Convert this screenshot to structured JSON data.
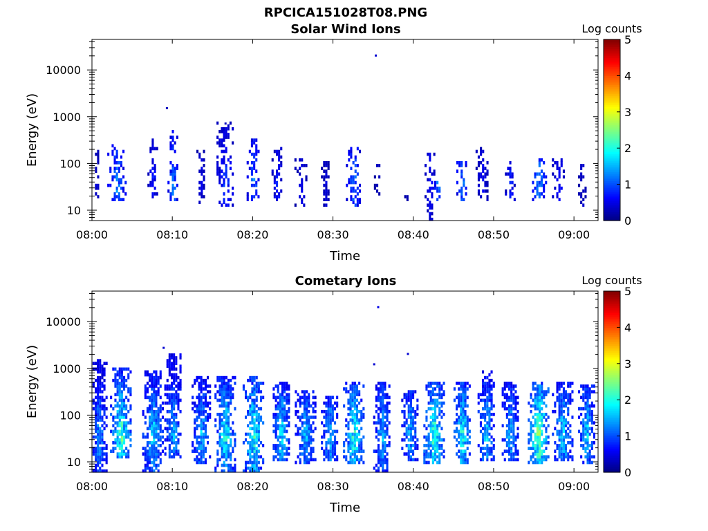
{
  "figure": {
    "title": "RPCICA151028T08.PNG",
    "colorbar": {
      "label": "Log counts",
      "min": 0,
      "max": 5,
      "ticks": [
        "0",
        "1",
        "2",
        "3",
        "4",
        "5"
      ]
    }
  },
  "chart_data": [
    {
      "type": "heatmap",
      "title": "Solar Wind Ions",
      "xlabel": "Time",
      "ylabel": "Energy (eV)",
      "x_ticks": [
        "08:00",
        "08:10",
        "08:20",
        "08:30",
        "08:40",
        "08:50",
        "09:00"
      ],
      "y_ticks": [
        "10",
        "100",
        "1000",
        "10000"
      ],
      "y_scale": "log",
      "ylim": [
        6,
        45000
      ],
      "xlim_minutes": [
        0,
        63
      ],
      "value_label": "Log counts",
      "value_range": [
        0,
        5
      ],
      "bursts": [
        {
          "t": 0.5,
          "w": 0.8,
          "lo": 15,
          "hi": 180,
          "peak": 0.6
        },
        {
          "t": 3.0,
          "w": 2.2,
          "lo": 15,
          "hi": 230,
          "peak": 1.6
        },
        {
          "t": 7.5,
          "w": 1.2,
          "lo": 15,
          "hi": 330,
          "peak": 1.0
        },
        {
          "t": 10.0,
          "w": 1.2,
          "lo": 15,
          "hi": 500,
          "peak": 1.6
        },
        {
          "t": 13.5,
          "w": 1.0,
          "lo": 12,
          "hi": 250,
          "peak": 0.7
        },
        {
          "t": 16.5,
          "w": 2.0,
          "lo": 12,
          "hi": 700,
          "peak": 1.2
        },
        {
          "t": 20.0,
          "w": 1.5,
          "lo": 15,
          "hi": 300,
          "peak": 1.5
        },
        {
          "t": 23.0,
          "w": 1.3,
          "lo": 15,
          "hi": 200,
          "peak": 1.0
        },
        {
          "t": 26.0,
          "w": 1.6,
          "lo": 12,
          "hi": 120,
          "peak": 0.7
        },
        {
          "t": 29.0,
          "w": 1.0,
          "lo": 12,
          "hi": 100,
          "peak": 0.6
        },
        {
          "t": 32.5,
          "w": 1.8,
          "lo": 12,
          "hi": 200,
          "peak": 1.5
        },
        {
          "t": 35.5,
          "w": 0.8,
          "lo": 20,
          "hi": 100,
          "peak": 0.5
        },
        {
          "t": 39.0,
          "w": 0.8,
          "lo": 15,
          "hi": 40,
          "peak": 0.5
        },
        {
          "t": 42.0,
          "w": 1.2,
          "lo": 6,
          "hi": 170,
          "peak": 0.9
        },
        {
          "t": 43.0,
          "w": 0.8,
          "lo": 15,
          "hi": 45,
          "peak": 1.8
        },
        {
          "t": 46.0,
          "w": 1.3,
          "lo": 15,
          "hi": 100,
          "peak": 1.6
        },
        {
          "t": 48.5,
          "w": 1.5,
          "lo": 15,
          "hi": 200,
          "peak": 0.8
        },
        {
          "t": 52.0,
          "w": 1.2,
          "lo": 15,
          "hi": 100,
          "peak": 1.0
        },
        {
          "t": 55.5,
          "w": 2.0,
          "lo": 15,
          "hi": 120,
          "peak": 1.6
        },
        {
          "t": 58.0,
          "w": 1.5,
          "lo": 15,
          "hi": 120,
          "peak": 0.9
        },
        {
          "t": 61.0,
          "w": 1.0,
          "lo": 12,
          "hi": 100,
          "peak": 0.6
        }
      ],
      "isolated_points": [
        {
          "t": 35.2,
          "e": 20000,
          "v": 0.4
        },
        {
          "t": 9.2,
          "e": 1500,
          "v": 0.3
        },
        {
          "t": 16.5,
          "e": 700,
          "v": 0.3
        }
      ]
    },
    {
      "type": "heatmap",
      "title": "Cometary Ions",
      "xlabel": "Time",
      "ylabel": "Energy (eV)",
      "x_ticks": [
        "08:00",
        "08:10",
        "08:20",
        "08:30",
        "08:40",
        "08:50",
        "09:00"
      ],
      "y_ticks": [
        "10",
        "100",
        "1000",
        "10000"
      ],
      "y_scale": "log",
      "ylim": [
        6,
        45000
      ],
      "xlim_minutes": [
        0,
        63
      ],
      "value_label": "Log counts",
      "value_range": [
        0,
        5
      ],
      "bursts": [
        {
          "t": 0.8,
          "w": 2.0,
          "lo": 6,
          "hi": 1500,
          "peak": 1.8
        },
        {
          "t": 3.5,
          "w": 2.5,
          "lo": 12,
          "hi": 1000,
          "peak": 2.8
        },
        {
          "t": 7.5,
          "w": 2.5,
          "lo": 6,
          "hi": 800,
          "peak": 2.2
        },
        {
          "t": 10.0,
          "w": 2.0,
          "lo": 12,
          "hi": 2000,
          "peak": 2.0
        },
        {
          "t": 13.5,
          "w": 2.2,
          "lo": 8,
          "hi": 600,
          "peak": 2.0
        },
        {
          "t": 16.5,
          "w": 2.5,
          "lo": 6,
          "hi": 600,
          "peak": 2.5
        },
        {
          "t": 20.0,
          "w": 2.5,
          "lo": 6,
          "hi": 600,
          "peak": 2.7
        },
        {
          "t": 23.5,
          "w": 2.0,
          "lo": 10,
          "hi": 500,
          "peak": 2.3
        },
        {
          "t": 26.5,
          "w": 2.5,
          "lo": 8,
          "hi": 300,
          "peak": 2.0
        },
        {
          "t": 29.5,
          "w": 2.0,
          "lo": 10,
          "hi": 250,
          "peak": 2.0
        },
        {
          "t": 32.5,
          "w": 2.5,
          "lo": 8,
          "hi": 500,
          "peak": 2.6
        },
        {
          "t": 36.0,
          "w": 2.0,
          "lo": 6,
          "hi": 500,
          "peak": 2.0
        },
        {
          "t": 39.5,
          "w": 2.0,
          "lo": 10,
          "hi": 300,
          "peak": 2.0
        },
        {
          "t": 42.5,
          "w": 2.5,
          "lo": 8,
          "hi": 500,
          "peak": 2.8
        },
        {
          "t": 46.0,
          "w": 2.0,
          "lo": 8,
          "hi": 500,
          "peak": 2.6
        },
        {
          "t": 49.0,
          "w": 2.0,
          "lo": 10,
          "hi": 900,
          "peak": 2.2
        },
        {
          "t": 52.0,
          "w": 2.0,
          "lo": 10,
          "hi": 500,
          "peak": 2.0
        },
        {
          "t": 55.5,
          "w": 2.5,
          "lo": 8,
          "hi": 500,
          "peak": 3.2
        },
        {
          "t": 58.5,
          "w": 2.5,
          "lo": 10,
          "hi": 500,
          "peak": 2.2
        },
        {
          "t": 61.5,
          "w": 2.0,
          "lo": 8,
          "hi": 400,
          "peak": 2.2
        }
      ],
      "isolated_points": [
        {
          "t": 35.5,
          "e": 20000,
          "v": 0.5
        },
        {
          "t": 8.8,
          "e": 2700,
          "v": 0.4
        },
        {
          "t": 39.2,
          "e": 2000,
          "v": 0.4
        },
        {
          "t": 35.0,
          "e": 1200,
          "v": 0.4
        }
      ]
    }
  ]
}
